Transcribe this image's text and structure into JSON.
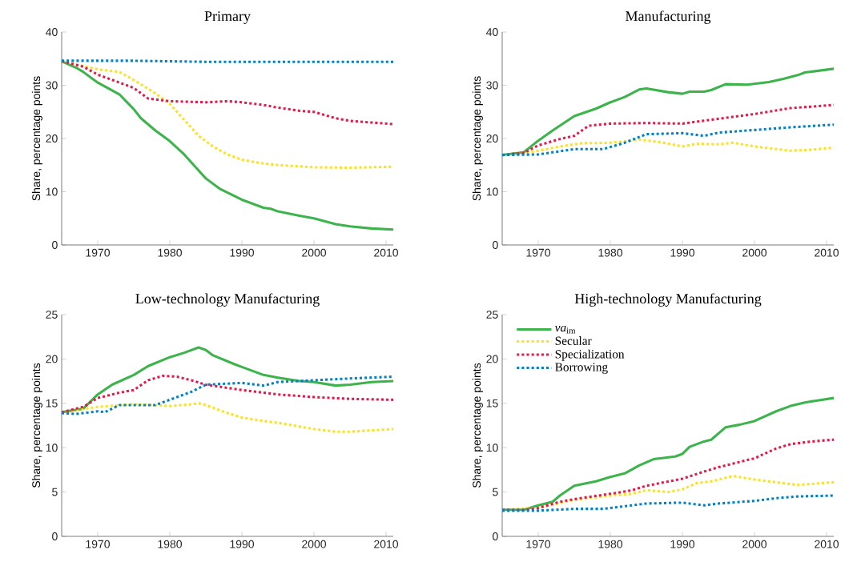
{
  "chart_data": [
    {
      "type": "line",
      "title": "Primary",
      "ylabel": "Share, percentage points",
      "xlim": [
        1965,
        2011
      ],
      "xticks": [
        1970,
        1980,
        1990,
        2000,
        2010
      ],
      "ylim": [
        0,
        40
      ],
      "yticks": [
        0,
        10,
        20,
        30,
        40
      ],
      "series": [
        {
          "color": "#3cb44b",
          "line_style": "solid",
          "x": [
            1965,
            1967,
            1968,
            1970,
            1973,
            1975,
            1976,
            1978,
            1980,
            1982,
            1983,
            1985,
            1987,
            1990,
            1993,
            1994,
            1995,
            1998,
            2000,
            2003,
            2005,
            2008,
            2011
          ],
          "values": [
            34.5,
            33.3,
            32.5,
            30.5,
            28.3,
            25.5,
            23.8,
            21.5,
            19.5,
            17,
            15.5,
            12.5,
            10.5,
            8.5,
            7,
            6.8,
            6.3,
            5.5,
            5,
            3.9,
            3.5,
            3.1,
            2.9
          ]
        },
        {
          "color": "#ffe119",
          "line_style": "dotted",
          "x": [
            1965,
            1970,
            1973,
            1975,
            1978,
            1980,
            1982,
            1984,
            1986,
            1988,
            1990,
            1993,
            1995,
            2000,
            2005,
            2011
          ],
          "values": [
            34.5,
            33,
            32.5,
            31,
            28.5,
            26.5,
            23.5,
            20.5,
            18.5,
            17,
            16,
            15.3,
            15,
            14.6,
            14.5,
            14.7
          ]
        },
        {
          "color": "#e6194b",
          "line_style": "dotted",
          "x": [
            1965,
            1968,
            1970,
            1973,
            1975,
            1977,
            1980,
            1985,
            1988,
            1990,
            1993,
            1995,
            1998,
            2000,
            2003,
            2005,
            2008,
            2011
          ],
          "values": [
            34.5,
            33.5,
            32,
            30.5,
            29.5,
            27.5,
            27,
            26.8,
            27,
            26.8,
            26.3,
            25.8,
            25.2,
            25,
            23.8,
            23.3,
            23,
            22.7
          ]
        },
        {
          "color": "#0082c8",
          "line_style": "dotted",
          "x": [
            1965,
            1975,
            1985,
            2011
          ],
          "values": [
            34.6,
            34.6,
            34.4,
            34.4
          ]
        }
      ]
    },
    {
      "type": "line",
      "title": "Manufacturing",
      "ylabel": "Share, percentage points",
      "xlim": [
        1965,
        2011
      ],
      "xticks": [
        1970,
        1980,
        1990,
        2000,
        2010
      ],
      "ylim": [
        0,
        40
      ],
      "yticks": [
        0,
        10,
        20,
        30,
        40
      ],
      "series": [
        {
          "color": "#3cb44b",
          "line_style": "solid",
          "x": [
            1965,
            1968,
            1970,
            1972,
            1975,
            1978,
            1980,
            1982,
            1984,
            1985,
            1988,
            1990,
            1991,
            1993,
            1994,
            1996,
            1999,
            2002,
            2004,
            2006,
            2007,
            2011
          ],
          "values": [
            16.9,
            17.4,
            19.6,
            21.5,
            24.2,
            25.6,
            26.8,
            27.8,
            29.2,
            29.4,
            28.7,
            28.4,
            28.8,
            28.8,
            29.1,
            30.2,
            30.1,
            30.6,
            31.2,
            31.9,
            32.4,
            33.1
          ]
        },
        {
          "color": "#ffe119",
          "line_style": "dotted",
          "x": [
            1965,
            1968,
            1970,
            1973,
            1976,
            1980,
            1983,
            1984,
            1987,
            1990,
            1992,
            1995,
            1997,
            2000,
            2005,
            2008,
            2011
          ],
          "values": [
            16.9,
            17.2,
            17.7,
            18.5,
            19.1,
            19.2,
            19.6,
            19.8,
            19.3,
            18.5,
            19,
            18.9,
            19.2,
            18.5,
            17.7,
            17.9,
            18.3
          ]
        },
        {
          "color": "#e6194b",
          "line_style": "dotted",
          "x": [
            1965,
            1968,
            1970,
            1973,
            1975,
            1977,
            1980,
            1985,
            1990,
            1995,
            2000,
            2005,
            2011
          ],
          "values": [
            16.9,
            17.3,
            18.7,
            19.9,
            20.5,
            22.4,
            22.8,
            22.9,
            22.8,
            23.7,
            24.6,
            25.7,
            26.3
          ]
        },
        {
          "color": "#0082c8",
          "line_style": "dotted",
          "x": [
            1965,
            1970,
            1975,
            1979,
            1982,
            1985,
            1990,
            1993,
            1995,
            2000,
            2005,
            2011
          ],
          "values": [
            16.9,
            17,
            18,
            18,
            19.2,
            20.8,
            21,
            20.5,
            21.1,
            21.6,
            22.1,
            22.6
          ]
        }
      ]
    },
    {
      "type": "line",
      "title": "Low-technology Manufacturing",
      "ylabel": "Share, percentage points",
      "xlim": [
        1965,
        2011
      ],
      "xticks": [
        1970,
        1980,
        1990,
        2000,
        2010
      ],
      "ylim": [
        0,
        25
      ],
      "yticks": [
        0,
        5,
        10,
        15,
        20,
        25
      ],
      "series": [
        {
          "color": "#3cb44b",
          "line_style": "solid",
          "x": [
            1965,
            1968,
            1970,
            1972,
            1975,
            1977,
            1980,
            1982,
            1984,
            1985,
            1986,
            1989,
            1990,
            1993,
            1995,
            1998,
            2000,
            2003,
            2005,
            2008,
            2011
          ],
          "values": [
            14,
            14.4,
            16,
            17.1,
            18.2,
            19.2,
            20.2,
            20.7,
            21.3,
            21,
            20.4,
            19.4,
            19.1,
            18.2,
            17.9,
            17.5,
            17.4,
            17,
            17.1,
            17.4,
            17.5
          ]
        },
        {
          "color": "#ffe119",
          "line_style": "dotted",
          "x": [
            1965,
            1970,
            1975,
            1980,
            1983,
            1984,
            1985,
            1988,
            1990,
            1993,
            1995,
            2000,
            2003,
            2005,
            2011
          ],
          "values": [
            14,
            14.6,
            14.9,
            14.7,
            14.9,
            15,
            14.8,
            13.9,
            13.4,
            13,
            12.8,
            12.1,
            11.8,
            11.8,
            12.1
          ]
        },
        {
          "color": "#e6194b",
          "line_style": "dotted",
          "x": [
            1965,
            1968,
            1970,
            1973,
            1975,
            1977,
            1979,
            1981,
            1983,
            1985,
            1990,
            1995,
            2000,
            2005,
            2011
          ],
          "values": [
            14,
            14.6,
            15.6,
            16.2,
            16.5,
            17.6,
            18.1,
            18,
            17.6,
            17.1,
            16.5,
            16,
            15.7,
            15.5,
            15.4
          ]
        },
        {
          "color": "#0082c8",
          "line_style": "dotted",
          "x": [
            1965,
            1967,
            1970,
            1971,
            1973,
            1976,
            1978,
            1980,
            1983,
            1985,
            1990,
            1993,
            1995,
            2000,
            2005,
            2011
          ],
          "values": [
            13.9,
            13.8,
            14.1,
            14,
            14.8,
            14.8,
            14.8,
            15.4,
            16.3,
            17.1,
            17.3,
            17,
            17.4,
            17.6,
            17.8,
            18
          ]
        }
      ]
    },
    {
      "type": "line",
      "title": "High-technology Manufacturing",
      "ylabel": "Share, percentage points",
      "xlim": [
        1965,
        2011
      ],
      "xticks": [
        1970,
        1980,
        1990,
        2000,
        2010
      ],
      "ylim": [
        0,
        25
      ],
      "yticks": [
        0,
        5,
        10,
        15,
        20,
        25
      ],
      "legend": "top left",
      "series": [
        {
          "name": "*va*$_{im}$",
          "color": "#3cb44b",
          "line_style": "solid",
          "x": [
            1965,
            1968,
            1970,
            1972,
            1973,
            1975,
            1978,
            1980,
            1982,
            1984,
            1986,
            1989,
            1990,
            1991,
            1993,
            1994,
            1996,
            1998,
            2000,
            2003,
            2005,
            2007,
            2011
          ],
          "values": [
            3,
            3,
            3.5,
            3.9,
            4.6,
            5.7,
            6.2,
            6.7,
            7.1,
            8,
            8.7,
            9,
            9.3,
            10.1,
            10.7,
            10.9,
            12.3,
            12.6,
            13,
            14.1,
            14.7,
            15.1,
            15.6
          ]
        },
        {
          "name": "Secular",
          "color": "#ffe119",
          "line_style": "dotted",
          "x": [
            1965,
            1970,
            1975,
            1980,
            1983,
            1985,
            1988,
            1990,
            1992,
            1994,
            1997,
            2000,
            2003,
            2006,
            2011
          ],
          "values": [
            3,
            3.2,
            4.1,
            4.6,
            4.8,
            5.2,
            5,
            5.3,
            6,
            6.2,
            6.8,
            6.4,
            6.1,
            5.8,
            6.1
          ]
        },
        {
          "name": "Specialization",
          "color": "#e6194b",
          "line_style": "dotted",
          "x": [
            1965,
            1968,
            1970,
            1973,
            1975,
            1980,
            1983,
            1985,
            1990,
            1993,
            1995,
            2000,
            2003,
            2005,
            2008,
            2011
          ],
          "values": [
            3,
            3,
            3.2,
            3.9,
            4.2,
            4.8,
            5.2,
            5.7,
            6.5,
            7.3,
            7.8,
            8.8,
            9.9,
            10.4,
            10.7,
            10.9
          ]
        },
        {
          "name": "Borrowing",
          "color": "#0082c8",
          "line_style": "dotted",
          "x": [
            1965,
            1970,
            1975,
            1979,
            1982,
            1985,
            1990,
            1993,
            1995,
            2000,
            2003,
            2006,
            2011
          ],
          "values": [
            2.9,
            2.9,
            3.1,
            3.1,
            3.4,
            3.7,
            3.8,
            3.5,
            3.7,
            4,
            4.3,
            4.5,
            4.6
          ]
        }
      ]
    }
  ]
}
